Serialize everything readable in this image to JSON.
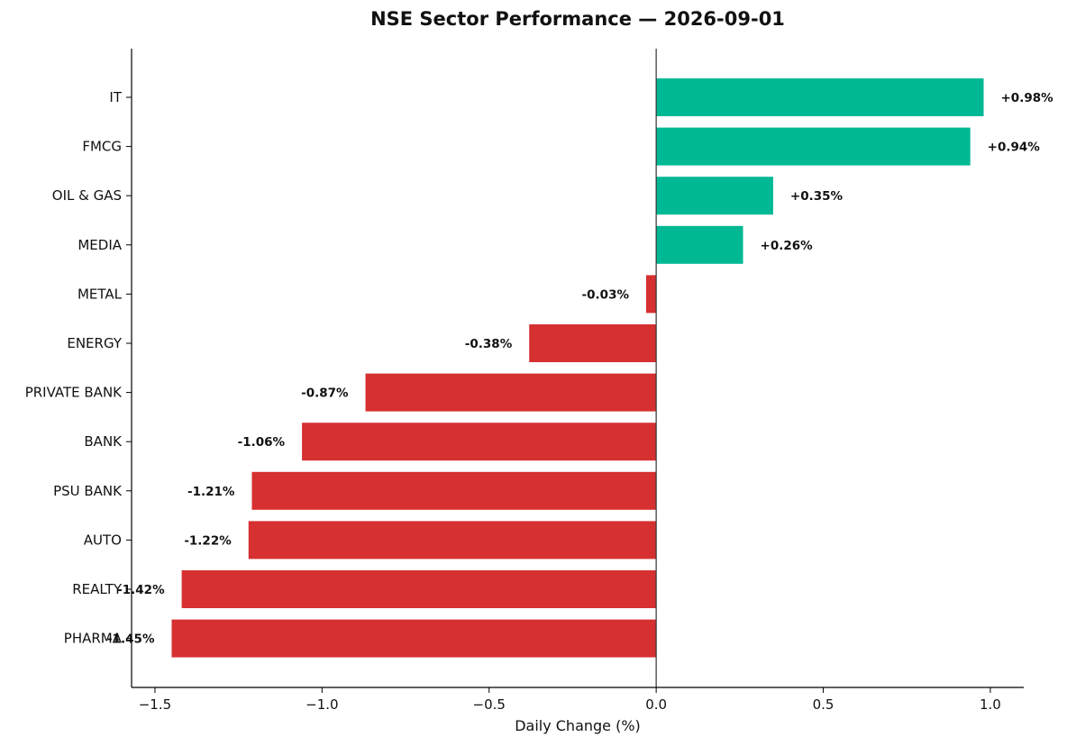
{
  "chart_data": {
    "type": "bar",
    "orientation": "horizontal",
    "title": "NSE Sector Performance — 2026-09-01",
    "xlabel": "Daily Change (%)",
    "ylabel": "",
    "xlim": [
      -1.57,
      1.1
    ],
    "xticks": [
      -1.5,
      -1.0,
      -0.5,
      0.0,
      0.5,
      1.0
    ],
    "xtick_labels": [
      "−1.5",
      "−1.0",
      "−0.5",
      "0.0",
      "0.5",
      "1.0"
    ],
    "categories": [
      "IT",
      "FMCG",
      "OIL & GAS",
      "MEDIA",
      "METAL",
      "ENERGY",
      "PRIVATE BANK",
      "BANK",
      "PSU BANK",
      "AUTO",
      "REALTY",
      "PHARMA"
    ],
    "values": [
      0.98,
      0.94,
      0.35,
      0.26,
      -0.03,
      -0.38,
      -0.87,
      -1.06,
      -1.21,
      -1.22,
      -1.42,
      -1.45
    ],
    "data_labels": [
      "+0.98%",
      "+0.94%",
      "+0.35%",
      "+0.26%",
      "-0.03%",
      "-0.38%",
      "-0.87%",
      "-1.06%",
      "-1.21%",
      "-1.22%",
      "-1.42%",
      "-1.45%"
    ],
    "colors": {
      "positive": "#00b894",
      "negative": "#d63031"
    },
    "grid": false,
    "zero_line": true
  }
}
